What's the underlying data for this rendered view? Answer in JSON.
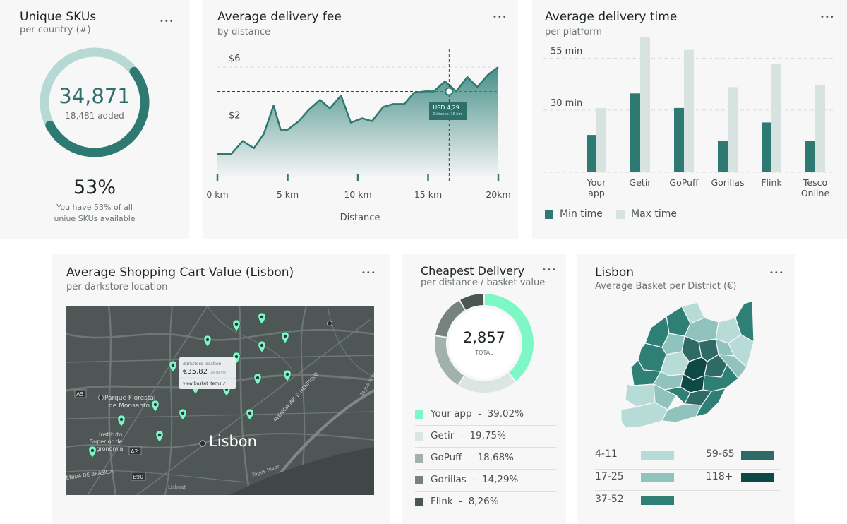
{
  "colors": {
    "teal": "#2e7a72",
    "light_teal": "#b7d9d5",
    "mint": "#7ef7c7",
    "area_top": "#3e8a82",
    "card_bg": "#f7f7f7"
  },
  "skus": {
    "title": "Unique SKUs",
    "subtitle": "per country (#)",
    "menu": "•••",
    "value": "34,871",
    "added": "18,481 added",
    "percent": "53%",
    "percent_fraction": 0.53,
    "desc_line1": "You have 53% of all",
    "desc_line2": "uniue SKUs available"
  },
  "fee": {
    "title": "Average delivery fee",
    "subtitle": "by distance",
    "menu": "•••",
    "tooltip_value": "USD 4,29",
    "tooltip_sub": "Distance: 16 km",
    "xlabel": "Distance"
  },
  "time": {
    "title": "Average delivery time",
    "subtitle": "per platform",
    "menu": "•••",
    "legend_min": "Min time",
    "legend_max": "Max time"
  },
  "cart": {
    "title": "Average Shopping Cart Value (Lisbon)",
    "subtitle": "per darkstore location",
    "menu": "•••",
    "map_city": "Lisbon",
    "place_1": "Parque Florestal",
    "place_1b": "de Monsanto",
    "place_2": "Instituto",
    "place_2b": "Superior de",
    "place_2c": "Agronomia",
    "road_1": "AVENIDA INF. D HENRIQUE",
    "road_2": "Tagus River",
    "road_3": "Tagus River",
    "road_4": "ENIDA DE BRASÍLIA",
    "road_5": "Lisboat",
    "badge_a5": "A5",
    "badge_a2": "A2",
    "badge_e90": "E90",
    "popup_label": "darkstore location:",
    "popup_value": "€35.82",
    "popup_items": "26 items",
    "popup_link": "view basket items ↗"
  },
  "cheap": {
    "title": "Cheapest Delivery",
    "subtitle": "per distance / basket value",
    "menu": "•••",
    "total": "2,857",
    "total_label": "TOTAL",
    "items": [
      {
        "label": "Your app",
        "sep": "-",
        "value": "39.02%",
        "color": "#7ef7c7",
        "share": 39.02
      },
      {
        "label": "Getir",
        "sep": "-",
        "value": "19,75%",
        "color": "#dbe5e3",
        "share": 19.75
      },
      {
        "label": "GoPuff",
        "sep": "-",
        "value": "18,68%",
        "color": "#a3b1ae",
        "share": 18.68
      },
      {
        "label": "Gorillas",
        "sep": "-",
        "value": "14,29%",
        "color": "#76827f",
        "share": 14.29
      },
      {
        "label": "Flink",
        "sep": "-",
        "value": "8,26%",
        "color": "#4b5654",
        "share": 8.26
      }
    ]
  },
  "lisbon": {
    "title": "Lisbon",
    "subtitle": "Average Basket per District (€)",
    "menu": "•••",
    "legend": [
      {
        "label": "4-11",
        "color": "#b7dcd7"
      },
      {
        "label": "17-25",
        "color": "#90c3bd"
      },
      {
        "label": "37-52",
        "color": "#2e8077"
      },
      {
        "label": "59-65",
        "color": "#2f6b66"
      },
      {
        "label": "118+",
        "color": "#0e4a45"
      }
    ]
  },
  "chart_data": [
    {
      "type": "area",
      "title": "Average delivery fee",
      "subtitle": "by distance",
      "xlabel": "Distance",
      "ylabel": "",
      "x_tick_labels": [
        "0 km",
        "5 km",
        "10 km",
        "15 km",
        "20km"
      ],
      "y_tick_labels": [
        "$2",
        "$6"
      ],
      "y_ticks": [
        2,
        6
      ],
      "xlim": [
        0,
        20
      ],
      "ylim": [
        -1.7,
        7
      ],
      "grid": true,
      "x": [
        0,
        1,
        1.8,
        2.6,
        3.3,
        4,
        4.5,
        5,
        5.8,
        6.5,
        7.3,
        8,
        8.8,
        9.5,
        10.3,
        11,
        11.8,
        12.5,
        13.3,
        14,
        14.8,
        15.4,
        16.2,
        17,
        17.8,
        18.5,
        19.3,
        20
      ],
      "y": [
        -0.1,
        -0.1,
        0.8,
        0.3,
        1.3,
        3.3,
        1.6,
        1.6,
        2.2,
        3.0,
        3.7,
        3.1,
        4.0,
        2.1,
        2.4,
        2.2,
        3.2,
        3.4,
        3.4,
        4.2,
        4.3,
        4.29,
        5.0,
        4.3,
        5.3,
        4.6,
        5.5,
        6.0
      ],
      "highlight": {
        "x": 16.5,
        "y": 4.29,
        "label": "USD 4,29"
      }
    },
    {
      "type": "bar",
      "title": "Average delivery time",
      "subtitle": "per platform",
      "categories": [
        "Your app",
        "Getir",
        "GoPuff",
        "Gorillas",
        "Flink",
        "Tesco Online"
      ],
      "series": [
        {
          "name": "Min time",
          "values": [
            18,
            38,
            31,
            15,
            24,
            15
          ]
        },
        {
          "name": "Max time",
          "values": [
            31,
            65,
            59,
            41,
            52,
            42
          ]
        }
      ],
      "y_ticks": [
        30,
        55
      ],
      "y_tick_labels": [
        "30 min",
        "55 min"
      ],
      "ylim": [
        0,
        66
      ],
      "grid": true,
      "legend": "bottom-left"
    },
    {
      "type": "pie",
      "title": "Cheapest Delivery",
      "subtitle": "per distance / basket value",
      "categories": [
        "Your app",
        "Getir",
        "GoPuff",
        "Gorillas",
        "Flink"
      ],
      "values": [
        39.02,
        19.75,
        18.68,
        14.29,
        8.26
      ],
      "center_value": "2,857",
      "center_label": "TOTAL"
    }
  ]
}
